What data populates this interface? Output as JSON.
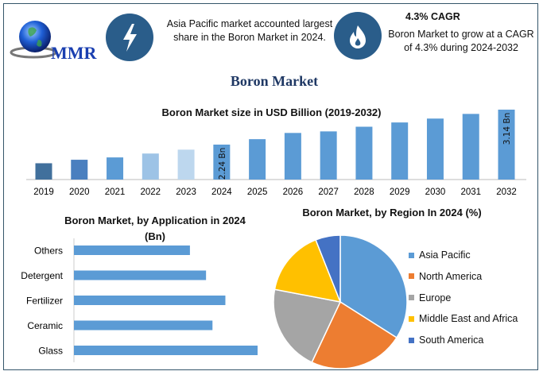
{
  "header": {
    "logo_text": "MMR",
    "stat1": {
      "icon": "lightning-icon",
      "text": "Asia Pacific market accounted largest share in the Boron Market in 2024."
    },
    "stat2": {
      "icon": "flame-icon",
      "title": "4.3% CAGR",
      "text": "Boron Market to grow at a CAGR of 4.3% during 2024-2032"
    }
  },
  "title": "Boron Market",
  "colors": {
    "frame": "#34556a",
    "icon_circle": "#2a5d8a",
    "title": "#1f3864"
  },
  "chart_data": [
    {
      "type": "bar",
      "title": "Boron Market size in USD Billion (2019-2032)",
      "categories": [
        "2019",
        "2020",
        "2021",
        "2022",
        "2023",
        "2024",
        "2025",
        "2026",
        "2027",
        "2028",
        "2029",
        "2030",
        "2031",
        "2032"
      ],
      "values": [
        1.76,
        1.85,
        1.91,
        2.01,
        2.11,
        2.24,
        2.38,
        2.54,
        2.58,
        2.7,
        2.81,
        2.91,
        3.03,
        3.14
      ],
      "colors": [
        "#41709c",
        "#4a7fbf",
        "#5b9bd5",
        "#9dc3e6",
        "#bdd7ee",
        "#5b9bd5",
        "#5b9bd5",
        "#5b9bd5",
        "#5b9bd5",
        "#5b9bd5",
        "#5b9bd5",
        "#5b9bd5",
        "#5b9bd5",
        "#5b9bd5"
      ],
      "data_labels": {
        "2024": "2.24 Bn",
        "2032": "3.14 Bn"
      },
      "ylim": [
        1.34,
        3.2
      ],
      "grid": false
    },
    {
      "type": "bar",
      "orientation": "horizontal",
      "title_line1": "Boron Market, by Application in 2024",
      "title_line2": "(Bn)",
      "categories": [
        "Others",
        "Detergent",
        "Fertilizer",
        "Ceramic",
        "Glass"
      ],
      "values": [
        0.36,
        0.41,
        0.47,
        0.43,
        0.57
      ],
      "color": "#5b9bd5",
      "xlim": [
        0,
        0.57
      ],
      "grid": false
    },
    {
      "type": "pie",
      "title": "Boron Market, by Region In 2024 (%)",
      "labels": [
        "Asia Pacific",
        "North America",
        "Europe",
        "Middle East and Africa",
        "South America"
      ],
      "values": [
        34,
        23,
        21,
        16,
        6
      ],
      "colors": [
        "#5b9bd5",
        "#ed7d31",
        "#a5a5a5",
        "#ffc000",
        "#4472c4"
      ],
      "legend": "right"
    }
  ]
}
